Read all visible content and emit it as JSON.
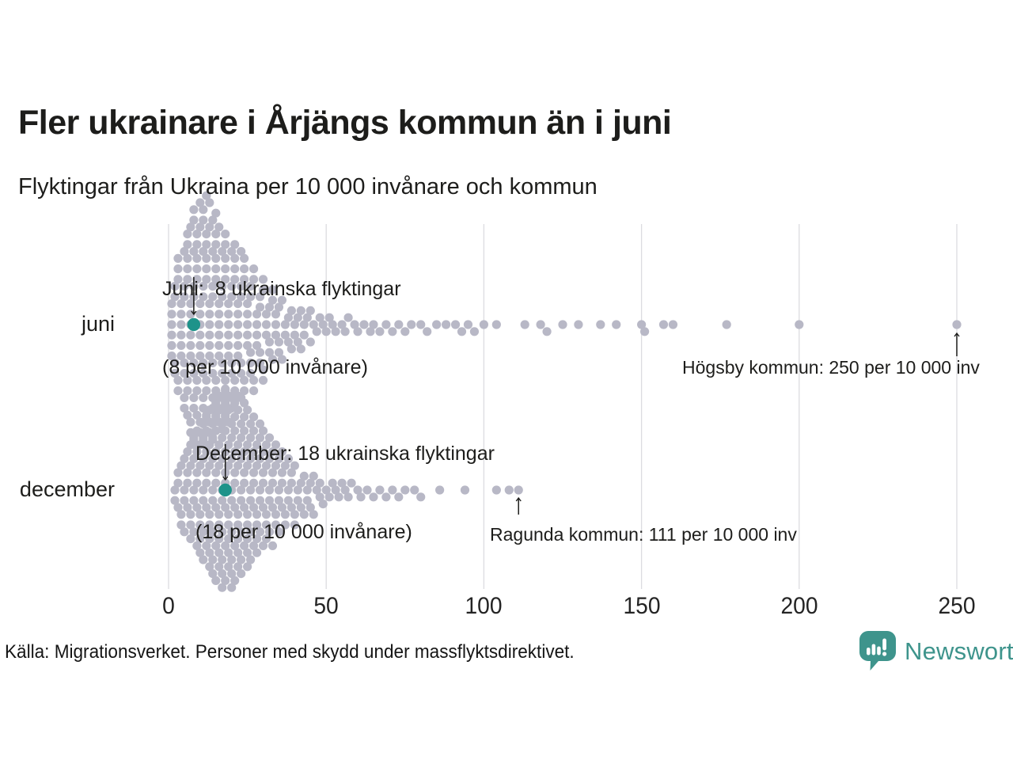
{
  "header": {
    "title": "Fler ukrainare i Årjängs kommun än i juni",
    "subtitle": "Flyktingar från Ukraina per 10 000 invånare och kommun"
  },
  "chart_data": {
    "type": "beeswarm",
    "title": "Fler ukrainare i Årjängs kommun än i juni",
    "subtitle": "Flyktingar från Ukraina per 10 000 invånare och kommun",
    "x_ticks": [
      0,
      50,
      100,
      150,
      200,
      250
    ],
    "x_range": [
      0,
      250
    ],
    "grid": true,
    "unit": "flyktingar per 10 000 invånare",
    "rows": [
      {
        "label": "juni",
        "value_counts": [
          [
            1,
            6
          ],
          [
            2,
            4
          ],
          [
            3,
            5
          ],
          [
            4,
            6
          ],
          [
            5,
            7
          ],
          [
            6,
            8
          ],
          [
            7,
            9
          ],
          [
            8,
            10
          ],
          [
            9,
            9
          ],
          [
            10,
            10
          ],
          [
            11,
            10
          ],
          [
            12,
            10
          ],
          [
            13,
            10
          ],
          [
            14,
            9
          ],
          [
            15,
            9
          ],
          [
            16,
            8
          ],
          [
            17,
            8
          ],
          [
            18,
            8
          ],
          [
            19,
            7
          ],
          [
            20,
            7
          ],
          [
            21,
            6
          ],
          [
            22,
            6
          ],
          [
            23,
            6
          ],
          [
            24,
            5
          ],
          [
            25,
            5
          ],
          [
            26,
            5
          ],
          [
            27,
            4
          ],
          [
            28,
            4
          ],
          [
            29,
            4
          ],
          [
            30,
            4
          ],
          [
            31,
            3
          ],
          [
            32,
            3
          ],
          [
            33,
            3
          ],
          [
            34,
            3
          ],
          [
            35,
            3
          ],
          [
            36,
            2
          ],
          [
            37,
            2
          ],
          [
            38,
            2
          ],
          [
            39,
            2
          ],
          [
            40,
            2
          ],
          [
            41,
            2
          ],
          [
            42,
            2
          ],
          [
            43,
            2
          ],
          [
            44,
            1
          ],
          [
            45,
            2
          ],
          [
            46,
            1
          ],
          [
            47,
            1
          ],
          [
            48,
            1
          ],
          [
            49,
            1
          ],
          [
            50,
            1
          ],
          [
            51,
            1
          ],
          [
            52,
            1
          ],
          [
            53,
            1
          ],
          [
            55,
            1
          ],
          [
            56,
            1
          ],
          [
            57,
            1
          ],
          [
            59,
            1
          ],
          [
            60,
            1
          ],
          [
            62,
            1
          ],
          [
            64,
            1
          ],
          [
            65,
            1
          ],
          [
            67,
            1
          ],
          [
            69,
            1
          ],
          [
            71,
            1
          ],
          [
            73,
            1
          ],
          [
            75,
            1
          ],
          [
            77,
            1
          ],
          [
            80,
            1
          ],
          [
            82,
            1
          ],
          [
            85,
            1
          ],
          [
            88,
            1
          ],
          [
            91,
            1
          ],
          [
            93,
            1
          ],
          [
            95,
            1
          ],
          [
            97,
            1
          ],
          [
            100,
            1
          ],
          [
            104,
            1
          ],
          [
            113,
            1
          ],
          [
            118,
            1
          ],
          [
            120,
            1
          ],
          [
            125,
            1
          ],
          [
            130,
            1
          ],
          [
            137,
            1
          ],
          [
            142,
            1
          ],
          [
            150,
            1
          ],
          [
            151,
            1
          ],
          [
            157,
            1
          ],
          [
            160,
            1
          ],
          [
            177,
            1
          ],
          [
            200,
            1
          ],
          [
            250,
            1
          ]
        ]
      },
      {
        "label": "december",
        "value_counts": [
          [
            2,
            2
          ],
          [
            3,
            3
          ],
          [
            4,
            3
          ],
          [
            5,
            4
          ],
          [
            6,
            4
          ],
          [
            7,
            5
          ],
          [
            8,
            5
          ],
          [
            9,
            6
          ],
          [
            10,
            6
          ],
          [
            11,
            7
          ],
          [
            12,
            7
          ],
          [
            13,
            8
          ],
          [
            14,
            8
          ],
          [
            15,
            9
          ],
          [
            16,
            9
          ],
          [
            17,
            9
          ],
          [
            18,
            10
          ],
          [
            19,
            9
          ],
          [
            20,
            9
          ],
          [
            21,
            9
          ],
          [
            22,
            9
          ],
          [
            23,
            8
          ],
          [
            24,
            8
          ],
          [
            25,
            8
          ],
          [
            26,
            7
          ],
          [
            27,
            7
          ],
          [
            28,
            6
          ],
          [
            29,
            6
          ],
          [
            30,
            6
          ],
          [
            31,
            5
          ],
          [
            32,
            5
          ],
          [
            33,
            5
          ],
          [
            34,
            4
          ],
          [
            35,
            4
          ],
          [
            36,
            4
          ],
          [
            37,
            3
          ],
          [
            38,
            3
          ],
          [
            39,
            3
          ],
          [
            40,
            3
          ],
          [
            41,
            2
          ],
          [
            42,
            2
          ],
          [
            43,
            2
          ],
          [
            44,
            2
          ],
          [
            45,
            2
          ],
          [
            46,
            2
          ],
          [
            47,
            1
          ],
          [
            48,
            2
          ],
          [
            49,
            1
          ],
          [
            50,
            1
          ],
          [
            51,
            1
          ],
          [
            52,
            1
          ],
          [
            53,
            1
          ],
          [
            54,
            1
          ],
          [
            55,
            1
          ],
          [
            56,
            1
          ],
          [
            57,
            1
          ],
          [
            58,
            1
          ],
          [
            60,
            1
          ],
          [
            61,
            1
          ],
          [
            63,
            1
          ],
          [
            65,
            1
          ],
          [
            67,
            1
          ],
          [
            69,
            1
          ],
          [
            71,
            1
          ],
          [
            73,
            1
          ],
          [
            75,
            1
          ],
          [
            78,
            1
          ],
          [
            80,
            1
          ],
          [
            86,
            1
          ],
          [
            94,
            1
          ],
          [
            104,
            1
          ],
          [
            108,
            1
          ],
          [
            111,
            1
          ]
        ]
      }
    ],
    "highlights": [
      {
        "row": "juni",
        "value": 8,
        "label_lines": [
          "Juni:  8 ukrainska flyktingar",
          "(8 per 10 000 invånare)"
        ]
      },
      {
        "row": "december",
        "value": 18,
        "label_lines": [
          "December: 18 ukrainska flyktingar",
          "(18 per 10 000 invånare)"
        ]
      }
    ],
    "callouts": [
      {
        "row": "juni",
        "value": 250,
        "text": "Högsby kommun: 250 per 10 000 inv"
      },
      {
        "row": "december",
        "value": 111,
        "text": "Ragunda kommun: 111 per 10 000 inv"
      }
    ],
    "colors": {
      "dot": "#b8b8c6",
      "highlight": "#1e938a",
      "grid": "#dcdce0",
      "arrow": "#1d1d1b",
      "text": "#1d1d1b"
    }
  },
  "footer": {
    "source": "Källa: Migrationsverket. Personer med skydd under massflyktsdirektivet.",
    "brand": "Newsworthy",
    "brand_color": "#3e948c"
  }
}
